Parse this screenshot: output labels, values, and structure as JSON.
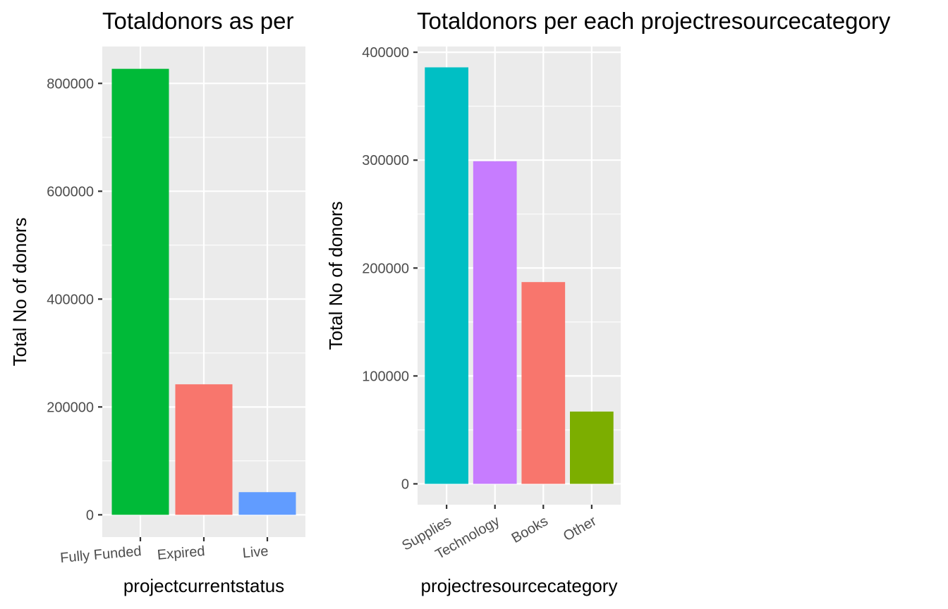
{
  "chart_data": [
    {
      "type": "bar",
      "title": "Totaldonors as per",
      "xlabel": "projectcurrentstatus",
      "ylabel": "Total No of donors",
      "categories": [
        "Fully Funded",
        "Expired",
        "Live"
      ],
      "values": [
        827000,
        242000,
        42000
      ],
      "colors": [
        "#00BA38",
        "#F8766D",
        "#619CFF"
      ],
      "yticks": [
        0,
        200000,
        400000,
        600000,
        800000
      ],
      "ylim": [
        -41350,
        868350
      ],
      "grid": true,
      "panel_background": "#EBEBEB",
      "x_tick_rotation": "slight"
    },
    {
      "type": "bar",
      "title": "Totaldonors per each projectresourcecategory",
      "xlabel": "projectresourcecategory",
      "ylabel": "Total No of donors",
      "categories": [
        "Supplies",
        "Technology",
        "Books",
        "Other"
      ],
      "values": [
        386000,
        299000,
        187000,
        67000
      ],
      "colors": [
        "#00BFC4",
        "#C77CFF",
        "#F8766D",
        "#7CAE00"
      ],
      "yticks": [
        0,
        100000,
        200000,
        300000,
        400000
      ],
      "ylim": [
        -19300,
        405300
      ],
      "grid": true,
      "panel_background": "#EBEBEB",
      "x_tick_rotation": "30deg"
    }
  ]
}
